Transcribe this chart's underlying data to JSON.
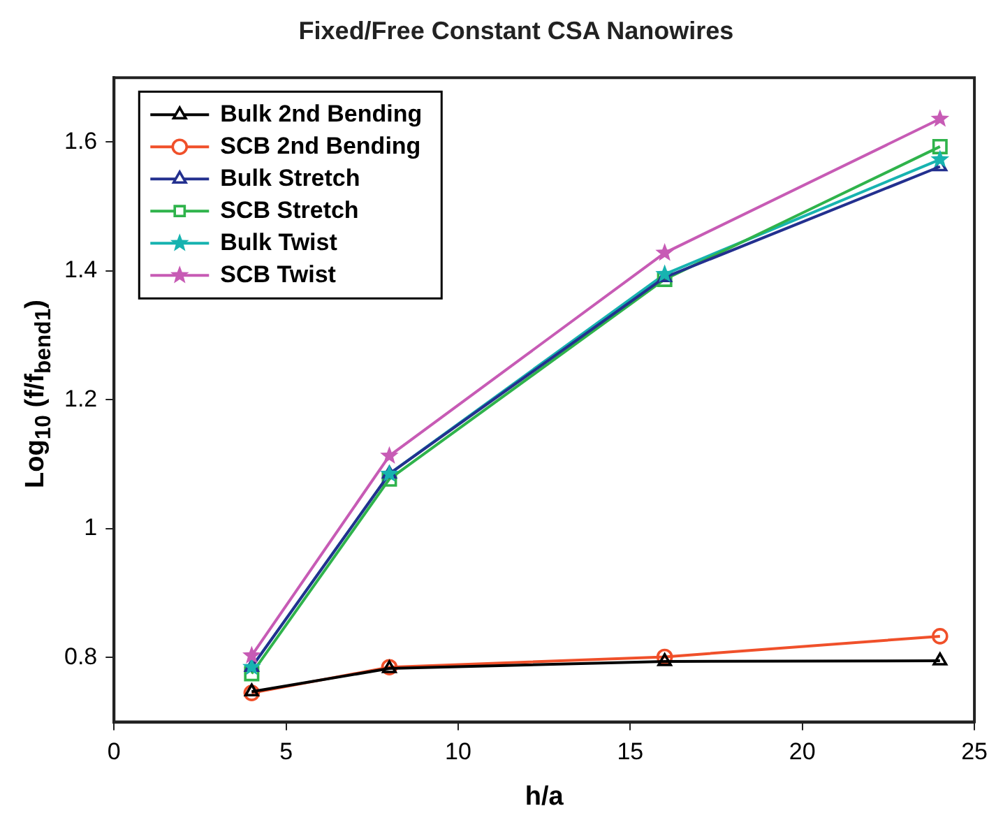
{
  "chart_data": {
    "type": "line",
    "title": "Fixed/Free Constant CSA Nanowires",
    "xlabel": "h/a",
    "ylabel": "Log$_{10}$ (f/f$_{bend1}$)",
    "x": [
      4,
      8,
      16,
      24
    ],
    "series": [
      {
        "name": "Bulk 2nd Bending",
        "color": "#000000",
        "marker": "triangle",
        "values": [
          0.747,
          0.783,
          0.794,
          0.795
        ]
      },
      {
        "name": "SCB 2nd Bending",
        "color": "#f0502a",
        "marker": "circle",
        "values": [
          0.745,
          0.785,
          0.801,
          0.833
        ]
      },
      {
        "name": "Bulk Stretch",
        "color": "#23308f",
        "marker": "triangle",
        "values": [
          0.785,
          1.085,
          1.39,
          1.562
        ]
      },
      {
        "name": "SCB Stretch",
        "color": "#2fb34b",
        "marker": "square",
        "values": [
          0.775,
          1.077,
          1.387,
          1.593
        ]
      },
      {
        "name": "Bulk Twist",
        "color": "#17b3b0",
        "marker": "star",
        "values": [
          0.785,
          1.085,
          1.395,
          1.573
        ]
      },
      {
        "name": "SCB Twist",
        "color": "#c75bb5",
        "marker": "star",
        "values": [
          0.803,
          1.113,
          1.428,
          1.636
        ]
      }
    ],
    "xlim": [
      0,
      25
    ],
    "xticks": [
      0,
      5,
      10,
      15,
      20,
      25
    ],
    "ylim": [
      0.7,
      1.7
    ],
    "yticks": [
      0.8,
      1,
      1.2,
      1.4,
      1.6
    ],
    "grid": false,
    "legend": "top left",
    "line_style": "solid"
  }
}
